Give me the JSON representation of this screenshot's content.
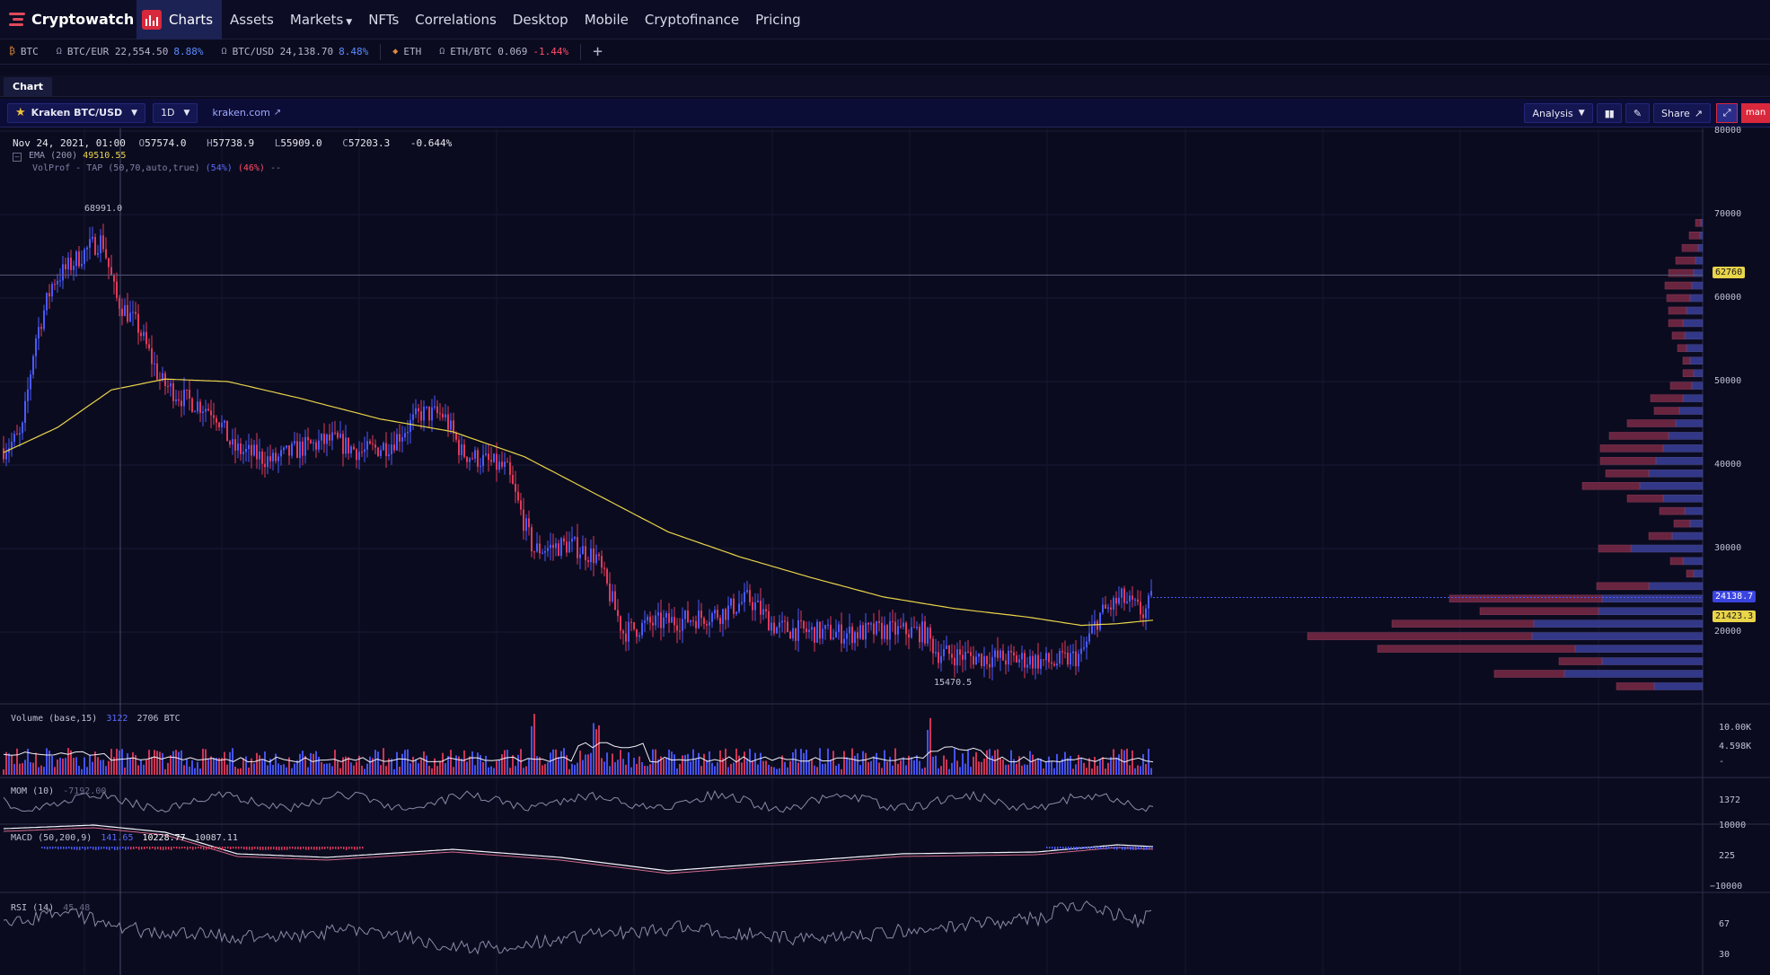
{
  "nav": {
    "logo": "Cryptowatch",
    "items": [
      {
        "label": "Charts",
        "active": true
      },
      {
        "label": "Assets"
      },
      {
        "label": "Markets",
        "dropdown": true
      },
      {
        "label": "NFTs"
      },
      {
        "label": "Correlations"
      },
      {
        "label": "Desktop"
      },
      {
        "label": "Mobile"
      },
      {
        "label": "Cryptofinance"
      },
      {
        "label": "Pricing"
      }
    ]
  },
  "tickers": [
    {
      "label": "BTC",
      "price": "",
      "change": "",
      "dir": ""
    },
    {
      "label": "BTC/EUR",
      "price": "22,554.50",
      "change": "8.88%",
      "dir": "up"
    },
    {
      "label": "BTC/USD",
      "price": "24,138.70",
      "change": "8.48%",
      "dir": "up"
    },
    {
      "label": "ETH",
      "price": "",
      "change": "",
      "dir": ""
    },
    {
      "label": "ETH/BTC",
      "price": "0.069",
      "change": "-1.44%",
      "dir": "down"
    }
  ],
  "tab": {
    "label": "Chart"
  },
  "toolbar": {
    "market": "Kraken BTC/USD",
    "interval": "1D",
    "exchange_link": "kraken.com",
    "analysis": "Analysis",
    "share": "Share",
    "more_label": "man"
  },
  "legend": {
    "date": "Nov 24, 2021, 01:00",
    "open": "57574.0",
    "high": "57738.9",
    "low": "55909.0",
    "close": "57203.3",
    "change": "-0.644%",
    "ema_label": "EMA (200)",
    "ema_value": "49510.55",
    "vp_label": "VolProf - TAP (50,70,auto,true)",
    "vp_buy": "(54%)",
    "vp_sell": "(46%)",
    "vp_dash": "--"
  },
  "price_axis": {
    "ticks": [
      "80000",
      "70000",
      "60000",
      "50000",
      "40000",
      "30000",
      "20000"
    ],
    "crosshair_value": "62760",
    "last_price": "24138.7",
    "ema_tag": "21423.3"
  },
  "annotations": {
    "high": "68991.0",
    "low": "15470.5"
  },
  "panes": {
    "volume": {
      "label": "Volume (base,15)",
      "v1": "3122",
      "v2": "2706 BTC",
      "ticks": [
        "10.00K",
        "4.598K",
        "-"
      ]
    },
    "mom": {
      "label": "MOM (10)",
      "value": "-7192.00",
      "tag": "1372"
    },
    "macd": {
      "label": "MACD (50,200,9)",
      "v1": "141.65",
      "v2": "10228.77",
      "v3": "10087.11",
      "ticks": [
        "10000",
        "225",
        "−10000"
      ]
    },
    "rsi": {
      "label": "RSI (14)",
      "value": "45.48",
      "ticks": [
        "67",
        "30"
      ]
    }
  },
  "colors": {
    "up": "#4a5aff",
    "down": "#e03a5a",
    "ema": "#e9d44a",
    "accent": "#d9283c",
    "background": "#0b0b1f"
  },
  "chart_data": {
    "type": "candlestick",
    "title": "",
    "ylim": [
      10000,
      80000
    ],
    "y_ticks": [
      20000,
      30000,
      40000,
      50000,
      60000,
      70000,
      80000
    ],
    "price_path": [
      [
        0,
        42000
      ],
      [
        20,
        43500
      ],
      [
        35,
        55000
      ],
      [
        55,
        62000
      ],
      [
        75,
        64000
      ],
      [
        95,
        66000
      ],
      [
        110,
        67000
      ],
      [
        125,
        60000
      ],
      [
        150,
        56500
      ],
      [
        175,
        50000
      ],
      [
        200,
        48000
      ],
      [
        235,
        46500
      ],
      [
        255,
        42000
      ],
      [
        300,
        40500
      ],
      [
        330,
        42000
      ],
      [
        365,
        43000
      ],
      [
        400,
        41500
      ],
      [
        430,
        42500
      ],
      [
        465,
        46200
      ],
      [
        490,
        46000
      ],
      [
        510,
        41500
      ],
      [
        560,
        39500
      ],
      [
        590,
        29800
      ],
      [
        630,
        30500
      ],
      [
        660,
        29000
      ],
      [
        690,
        20000
      ],
      [
        720,
        21000
      ],
      [
        760,
        21500
      ],
      [
        800,
        22300
      ],
      [
        830,
        24000
      ],
      [
        860,
        20500
      ],
      [
        900,
        20000
      ],
      [
        940,
        19800
      ],
      [
        980,
        20200
      ],
      [
        1025,
        20000
      ],
      [
        1040,
        17500
      ],
      [
        1080,
        17000
      ],
      [
        1140,
        16700
      ],
      [
        1170,
        16300
      ],
      [
        1200,
        17200
      ],
      [
        1220,
        22000
      ],
      [
        1245,
        24000
      ],
      [
        1270,
        22200
      ],
      [
        1280,
        24138
      ]
    ],
    "ema200_path": [
      [
        0,
        41500
      ],
      [
        60,
        44500
      ],
      [
        120,
        49000
      ],
      [
        180,
        50300
      ],
      [
        250,
        50000
      ],
      [
        330,
        48000
      ],
      [
        420,
        45500
      ],
      [
        500,
        44000
      ],
      [
        580,
        41000
      ],
      [
        660,
        36500
      ],
      [
        740,
        32000
      ],
      [
        820,
        29000
      ],
      [
        900,
        26500
      ],
      [
        980,
        24200
      ],
      [
        1060,
        22800
      ],
      [
        1140,
        21800
      ],
      [
        1200,
        20800
      ],
      [
        1240,
        21000
      ],
      [
        1280,
        21423
      ]
    ],
    "high": 68991.0,
    "low": 15470.5,
    "last": 24138.7
  }
}
